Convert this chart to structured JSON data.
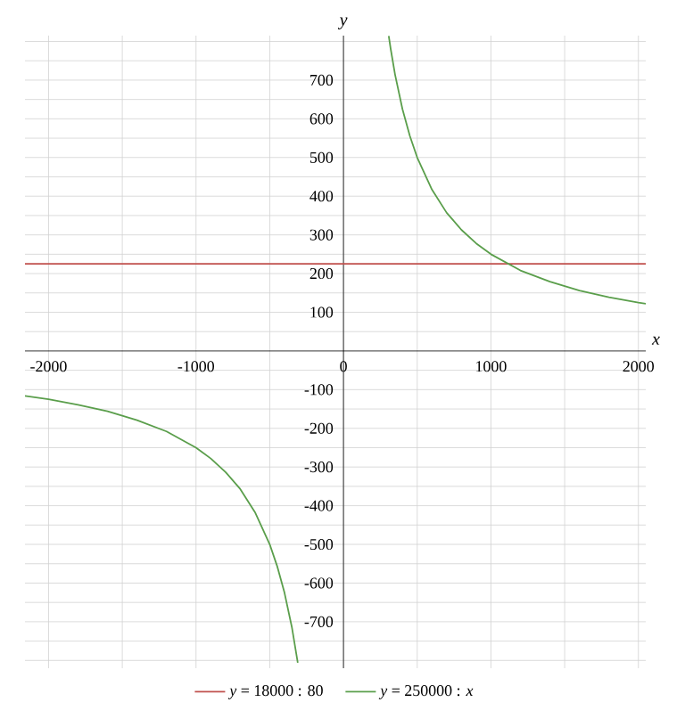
{
  "chart_data": {
    "type": "line",
    "xlabel": "x",
    "ylabel": "y",
    "xlim": [
      -2160,
      2050
    ],
    "ylim": [
      -820,
      815
    ],
    "xticks": [
      -2000,
      {
        "value": -1500,
        "label": null
      },
      -1000,
      {
        "value": -500,
        "label": null
      },
      0,
      {
        "value": 500,
        "label": null
      },
      1000,
      {
        "value": 1500,
        "label": null
      },
      2000
    ],
    "yticks": [
      {
        "value": -800,
        "label": null
      },
      {
        "value": -750,
        "label": null
      },
      -700,
      {
        "value": -650,
        "label": null
      },
      -600,
      {
        "value": -550,
        "label": null
      },
      -500,
      {
        "value": -450,
        "label": null
      },
      -400,
      {
        "value": -350,
        "label": null
      },
      -300,
      {
        "value": -250,
        "label": null
      },
      -200,
      {
        "value": -150,
        "label": null
      },
      -100,
      {
        "value": -50,
        "label": null
      },
      {
        "value": 50,
        "label": null
      },
      100,
      {
        "value": 150,
        "label": null
      },
      200,
      {
        "value": 250,
        "label": null
      },
      300,
      {
        "value": 350,
        "label": null
      },
      400,
      {
        "value": 450,
        "label": null
      },
      500,
      {
        "value": 550,
        "label": null
      },
      600,
      {
        "value": 650,
        "label": null
      },
      700,
      {
        "value": 750,
        "label": null
      },
      {
        "value": 800,
        "label": null
      }
    ],
    "grid": true,
    "legend": "bottom",
    "series": [
      {
        "name": "*y* = 18000 : 80",
        "color": "#c0504d",
        "x": [
          -2160,
          2050
        ],
        "values": [
          225,
          225
        ]
      },
      {
        "name": "*y* = 250000 : *x*",
        "color": "#5a9e4b",
        "x": [
          -2160,
          -2000,
          -1800,
          -1600,
          -1400,
          -1200,
          -1000,
          -900,
          -800,
          -700,
          -600,
          -500,
          -450,
          -400,
          -350,
          -310,
          0,
          307,
          320,
          350,
          400,
          450,
          500,
          600,
          700,
          800,
          900,
          1000,
          1200,
          1400,
          1600,
          1800,
          2000,
          2050
        ],
        "values": [
          -116,
          -125,
          -139,
          -156,
          -179,
          -208,
          -250,
          -278,
          -313,
          -357,
          -417,
          -500,
          -556,
          -625,
          -714,
          -806,
          null,
          814,
          781,
          714,
          625,
          556,
          500,
          417,
          357,
          313,
          278,
          250,
          208,
          179,
          156,
          139,
          125,
          122
        ]
      }
    ]
  }
}
